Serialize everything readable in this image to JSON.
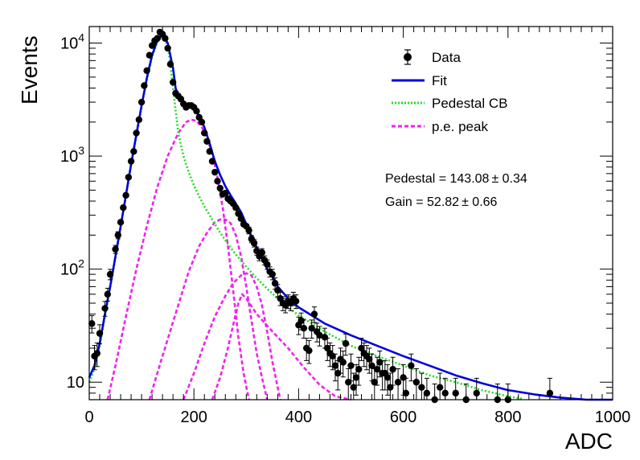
{
  "chart_data": {
    "type": "scatter",
    "title": "",
    "xlabel": "ADC",
    "ylabel": "Events",
    "xlim": [
      0,
      1000
    ],
    "ylim": [
      7,
      14000
    ],
    "yscale": "log",
    "grid": false,
    "legend_position": "top-right",
    "x_ticks": [
      "0",
      "200",
      "400",
      "600",
      "800",
      "1000"
    ],
    "y_ticks": [
      {
        "value": 10,
        "base": "10",
        "exp": ""
      },
      {
        "value": 100,
        "base": "10",
        "exp": "2"
      },
      {
        "value": 1000,
        "base": "10",
        "exp": "3"
      },
      {
        "value": 10000,
        "base": "10",
        "exp": "4"
      }
    ],
    "legend": [
      {
        "label": "Data",
        "style": "marker"
      },
      {
        "label": "Fit",
        "style": "solid",
        "color": "#0000dd"
      },
      {
        "label": "Pedestal CB",
        "style": "dotted",
        "color": "#22dd22"
      },
      {
        "label": "p.e. peak",
        "style": "dashed",
        "color": "#ee22ee"
      }
    ],
    "stats": [
      {
        "label": "Pedestal = ",
        "value": "143.08",
        "pm": "± 0.34"
      },
      {
        "label": "Gain = ",
        "value": "52.82",
        "pm": "± 0.66"
      }
    ],
    "colors": {
      "fit": "#0000dd",
      "pedestal": "#22dd22",
      "pe": "#ee22ee",
      "data": "#000000"
    },
    "series": [
      {
        "name": "Data",
        "type": "scatter",
        "points": [
          [
            5,
            33
          ],
          [
            10,
            17
          ],
          [
            15,
            18
          ],
          [
            20,
            27
          ],
          [
            30,
            45
          ],
          [
            35,
            60
          ],
          [
            40,
            90
          ],
          [
            50,
            150
          ],
          [
            55,
            200
          ],
          [
            60,
            260
          ],
          [
            65,
            350
          ],
          [
            70,
            450
          ],
          [
            75,
            650
          ],
          [
            80,
            900
          ],
          [
            85,
            1100
          ],
          [
            90,
            1600
          ],
          [
            95,
            2100
          ],
          [
            100,
            3000
          ],
          [
            105,
            4200
          ],
          [
            110,
            5700
          ],
          [
            115,
            7800
          ],
          [
            120,
            9500
          ],
          [
            125,
            10500
          ],
          [
            130,
            11000
          ],
          [
            135,
            12500
          ],
          [
            140,
            12000
          ],
          [
            145,
            11000
          ],
          [
            150,
            9000
          ],
          [
            155,
            6500
          ],
          [
            160,
            4500
          ],
          [
            165,
            3600
          ],
          [
            170,
            3400
          ],
          [
            175,
            3200
          ],
          [
            180,
            2900
          ],
          [
            185,
            2700
          ],
          [
            190,
            2800
          ],
          [
            195,
            2800
          ],
          [
            200,
            2700
          ],
          [
            205,
            2500
          ],
          [
            210,
            2200
          ],
          [
            215,
            2000
          ],
          [
            220,
            1600
          ],
          [
            225,
            1350
          ],
          [
            230,
            1100
          ],
          [
            235,
            900
          ],
          [
            240,
            720
          ],
          [
            245,
            600
          ],
          [
            250,
            520
          ],
          [
            255,
            460
          ],
          [
            260,
            470
          ],
          [
            265,
            420
          ],
          [
            270,
            400
          ],
          [
            275,
            380
          ],
          [
            280,
            350
          ],
          [
            285,
            310
          ],
          [
            290,
            280
          ],
          [
            295,
            250
          ],
          [
            300,
            240
          ],
          [
            305,
            220
          ],
          [
            310,
            185
          ],
          [
            315,
            170
          ],
          [
            320,
            145
          ],
          [
            325,
            130
          ],
          [
            330,
            140
          ],
          [
            335,
            120
          ],
          [
            340,
            110
          ],
          [
            345,
            95
          ],
          [
            350,
            90
          ],
          [
            355,
            75
          ],
          [
            360,
            65
          ],
          [
            365,
            55
          ],
          [
            370,
            50
          ],
          [
            375,
            48
          ],
          [
            380,
            52
          ],
          [
            385,
            50
          ],
          [
            390,
            55
          ],
          [
            395,
            52
          ],
          [
            400,
            32
          ],
          [
            405,
            35
          ],
          [
            410,
            30
          ],
          [
            415,
            20
          ],
          [
            420,
            19
          ],
          [
            425,
            30
          ],
          [
            430,
            40
          ],
          [
            435,
            28
          ],
          [
            440,
            26
          ],
          [
            450,
            25
          ],
          [
            455,
            20
          ],
          [
            460,
            18
          ],
          [
            465,
            17
          ],
          [
            470,
            14
          ],
          [
            475,
            12
          ],
          [
            480,
            16
          ],
          [
            485,
            15
          ],
          [
            490,
            22
          ],
          [
            495,
            10
          ],
          [
            500,
            14
          ],
          [
            505,
            9
          ],
          [
            510,
            11
          ],
          [
            515,
            13
          ],
          [
            520,
            20
          ],
          [
            525,
            18
          ],
          [
            530,
            17
          ],
          [
            535,
            16
          ],
          [
            540,
            14
          ],
          [
            545,
            10
          ],
          [
            550,
            13
          ],
          [
            555,
            15
          ],
          [
            560,
            12
          ],
          [
            565,
            12
          ],
          [
            570,
            11
          ],
          [
            575,
            9
          ],
          [
            580,
            13
          ],
          [
            590,
            10
          ],
          [
            600,
            11
          ],
          [
            605,
            8
          ],
          [
            615,
            14
          ],
          [
            625,
            10
          ],
          [
            635,
            9
          ],
          [
            645,
            8
          ],
          [
            660,
            7
          ],
          [
            670,
            9
          ],
          [
            680,
            8
          ],
          [
            700,
            8
          ],
          [
            720,
            7
          ],
          [
            740,
            8
          ],
          [
            780,
            7
          ],
          [
            800,
            7
          ],
          [
            880,
            8
          ]
        ]
      },
      {
        "name": "Fit",
        "type": "line",
        "points": [
          [
            0,
            11
          ],
          [
            10,
            14
          ],
          [
            20,
            22
          ],
          [
            30,
            40
          ],
          [
            40,
            70
          ],
          [
            50,
            130
          ],
          [
            60,
            240
          ],
          [
            70,
            450
          ],
          [
            80,
            850
          ],
          [
            90,
            1550
          ],
          [
            100,
            2800
          ],
          [
            110,
            4900
          ],
          [
            120,
            7800
          ],
          [
            130,
            10500
          ],
          [
            140,
            11800
          ],
          [
            150,
            10000
          ],
          [
            160,
            6000
          ],
          [
            165,
            4000
          ],
          [
            170,
            3400
          ],
          [
            180,
            3000
          ],
          [
            190,
            2800
          ],
          [
            200,
            2600
          ],
          [
            210,
            2300
          ],
          [
            220,
            1800
          ],
          [
            230,
            1300
          ],
          [
            240,
            900
          ],
          [
            250,
            680
          ],
          [
            260,
            540
          ],
          [
            270,
            450
          ],
          [
            280,
            380
          ],
          [
            290,
            320
          ],
          [
            300,
            250
          ],
          [
            310,
            195
          ],
          [
            320,
            155
          ],
          [
            330,
            125
          ],
          [
            340,
            100
          ],
          [
            350,
            85
          ],
          [
            360,
            70
          ],
          [
            380,
            55
          ],
          [
            400,
            46
          ],
          [
            450,
            33
          ],
          [
            500,
            26
          ],
          [
            550,
            21
          ],
          [
            600,
            17
          ],
          [
            650,
            14
          ],
          [
            700,
            11.5
          ],
          [
            750,
            9.8
          ],
          [
            800,
            8.5
          ],
          [
            850,
            7.8
          ],
          [
            900,
            7.3
          ],
          [
            950,
            7.0
          ],
          [
            1000,
            7.0
          ]
        ]
      },
      {
        "name": "Pedestal CB",
        "type": "line",
        "points": [
          [
            0,
            10
          ],
          [
            10,
            13
          ],
          [
            20,
            21
          ],
          [
            30,
            38
          ],
          [
            40,
            68
          ],
          [
            50,
            125
          ],
          [
            60,
            235
          ],
          [
            70,
            440
          ],
          [
            80,
            830
          ],
          [
            90,
            1500
          ],
          [
            100,
            2700
          ],
          [
            110,
            4700
          ],
          [
            120,
            7500
          ],
          [
            130,
            10200
          ],
          [
            140,
            11500
          ],
          [
            150,
            9500
          ],
          [
            155,
            6500
          ],
          [
            160,
            4000
          ],
          [
            170,
            1600
          ],
          [
            180,
            1000
          ],
          [
            190,
            720
          ],
          [
            200,
            550
          ],
          [
            210,
            440
          ],
          [
            220,
            360
          ],
          [
            230,
            300
          ],
          [
            240,
            250
          ],
          [
            250,
            210
          ],
          [
            260,
            180
          ],
          [
            270,
            155
          ],
          [
            280,
            135
          ],
          [
            300,
            105
          ],
          [
            320,
            83
          ],
          [
            340,
            67
          ],
          [
            360,
            55
          ],
          [
            380,
            46
          ],
          [
            400,
            39
          ],
          [
            450,
            28
          ],
          [
            500,
            21
          ],
          [
            550,
            17
          ],
          [
            600,
            14
          ],
          [
            650,
            11.5
          ],
          [
            700,
            10
          ],
          [
            750,
            8.5
          ],
          [
            800,
            7.5
          ],
          [
            830,
            7.1
          ]
        ]
      },
      {
        "name": "p.e. peak 1",
        "type": "line",
        "points": [
          [
            35,
            7
          ],
          [
            50,
            14
          ],
          [
            70,
            38
          ],
          [
            90,
            100
          ],
          [
            110,
            240
          ],
          [
            130,
            530
          ],
          [
            150,
            1000
          ],
          [
            170,
            1600
          ],
          [
            185,
            2000
          ],
          [
            195,
            2100
          ],
          [
            205,
            2050
          ],
          [
            215,
            1800
          ],
          [
            225,
            1450
          ],
          [
            235,
            1050
          ],
          [
            245,
            650
          ],
          [
            255,
            350
          ],
          [
            265,
            160
          ],
          [
            275,
            65
          ],
          [
            285,
            25
          ],
          [
            295,
            12
          ],
          [
            305,
            7
          ]
        ]
      },
      {
        "name": "p.e. peak 2",
        "type": "line",
        "points": [
          [
            115,
            7
          ],
          [
            130,
            12
          ],
          [
            150,
            24
          ],
          [
            170,
            48
          ],
          [
            190,
            95
          ],
          [
            210,
            160
          ],
          [
            225,
            210
          ],
          [
            240,
            260
          ],
          [
            250,
            275
          ],
          [
            260,
            275
          ],
          [
            270,
            255
          ],
          [
            280,
            200
          ],
          [
            290,
            130
          ],
          [
            300,
            70
          ],
          [
            310,
            35
          ],
          [
            320,
            18
          ],
          [
            330,
            11
          ],
          [
            340,
            7
          ]
        ]
      },
      {
        "name": "p.e. peak 3",
        "type": "line",
        "points": [
          [
            180,
            7
          ],
          [
            200,
            12
          ],
          [
            220,
            22
          ],
          [
            240,
            38
          ],
          [
            260,
            58
          ],
          [
            275,
            75
          ],
          [
            290,
            88
          ],
          [
            300,
            92
          ],
          [
            310,
            88
          ],
          [
            320,
            70
          ],
          [
            330,
            48
          ],
          [
            340,
            28
          ],
          [
            350,
            15
          ],
          [
            360,
            9
          ],
          [
            365,
            7
          ]
        ]
      },
      {
        "name": "p.e. peak tail",
        "type": "line",
        "points": [
          [
            235,
            7
          ],
          [
            250,
            11
          ],
          [
            265,
            20
          ],
          [
            275,
            32
          ],
          [
            285,
            50
          ],
          [
            292,
            60
          ],
          [
            300,
            55
          ],
          [
            320,
            40
          ],
          [
            350,
            28
          ],
          [
            380,
            20
          ],
          [
            410,
            13.5
          ],
          [
            440,
            9.5
          ],
          [
            470,
            7.5
          ],
          [
            500,
            7
          ]
        ]
      }
    ]
  }
}
